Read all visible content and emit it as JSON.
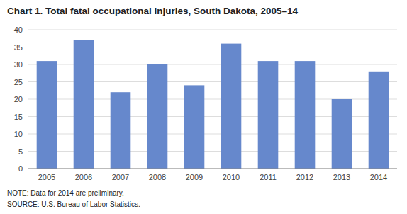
{
  "chart_data": {
    "type": "bar",
    "title": "Chart 1. Total fatal occupational injuries, South Dakota, 2005–14",
    "categories": [
      "2005",
      "2006",
      "2007",
      "2008",
      "2009",
      "2010",
      "2011",
      "2012",
      "2013",
      "2014"
    ],
    "values": [
      31,
      37,
      22,
      30,
      24,
      36,
      31,
      31,
      20,
      28
    ],
    "color": "#6688CC",
    "ylim": [
      0,
      40
    ],
    "yticks": [
      0,
      5,
      10,
      15,
      20,
      25,
      30,
      35,
      40
    ],
    "grid": true,
    "annotations": [
      "NOTE: Data for 2014 are preliminary.",
      "SOURCE: U.S. Bureau of Labor Statistics."
    ]
  }
}
